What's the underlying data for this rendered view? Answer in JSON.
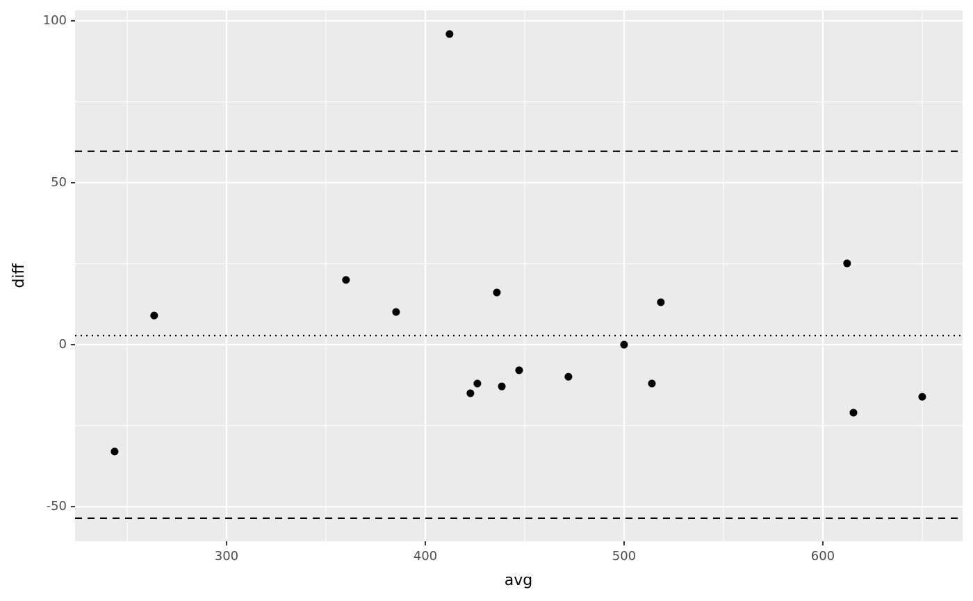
{
  "chart_data": {
    "type": "scatter",
    "x_label": "avg",
    "y_label": "diff",
    "x": [
      243.7,
      263.6,
      360.1,
      385.3,
      412.2,
      422.7,
      426.2,
      436.0,
      438.5,
      447.2,
      472.0,
      500.0,
      514.0,
      518.5,
      612.2,
      615.4,
      650.0
    ],
    "series": [
      {
        "color": "#000000",
        "values": [
          -33.0,
          9.0,
          20.0,
          10.1,
          95.9,
          -15.0,
          -12.0,
          16.1,
          -12.9,
          -7.9,
          -9.9,
          0.0,
          -12.0,
          13.1,
          25.1,
          -21.0,
          -16.1
        ]
      }
    ],
    "xlim": [
      223.8,
      670.3
    ],
    "ylim": [
      -60.7,
      103.2
    ],
    "xticks": [
      300,
      400,
      500,
      600
    ],
    "yticks": [
      -50,
      0,
      50,
      100
    ],
    "xminor": [
      250,
      350,
      450,
      550,
      650
    ],
    "yminor": [
      -25,
      25,
      75
    ],
    "hlines": [
      {
        "value": 59.7,
        "style": "dashed"
      },
      {
        "value": 2.8,
        "style": "dotted"
      },
      {
        "value": -53.6,
        "style": "dashed"
      }
    ],
    "grid": true,
    "background": "#ebebeb"
  }
}
